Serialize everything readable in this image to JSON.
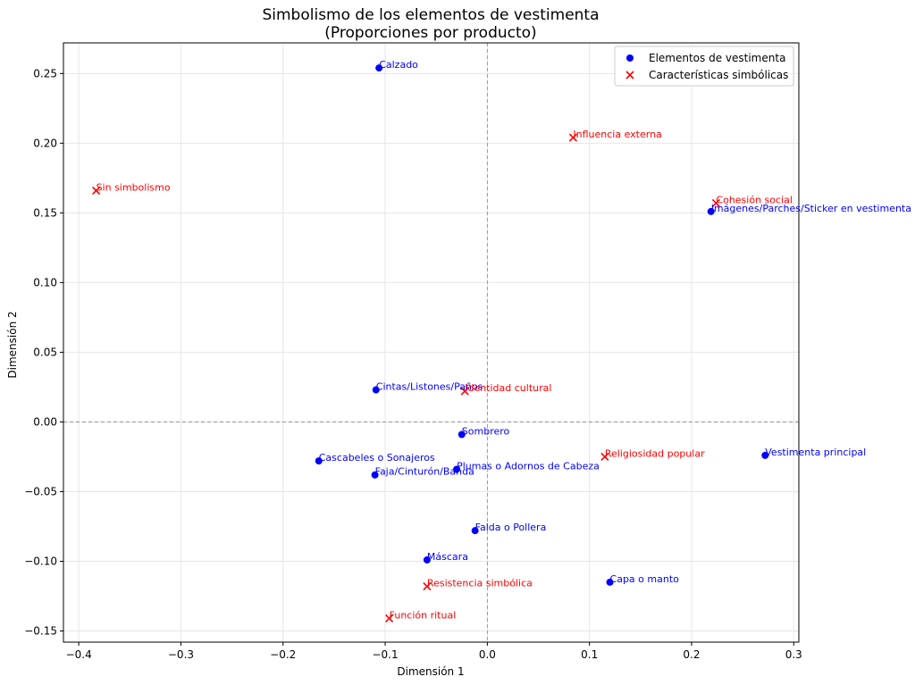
{
  "chart_data": {
    "type": "scatter",
    "title": "Simbolismo de los elementos de vestimenta",
    "subtitle": "(Proporciones por producto)",
    "xlabel": "Dimensión 1",
    "ylabel": "Dimensión 2",
    "xlim": [
      -0.415,
      0.305
    ],
    "ylim": [
      -0.158,
      0.272
    ],
    "xticks": [
      -0.4,
      -0.3,
      -0.2,
      -0.1,
      0.0,
      0.1,
      0.2,
      0.3
    ],
    "xtick_labels": [
      "−0.4",
      "−0.3",
      "−0.2",
      "−0.1",
      "0.0",
      "0.1",
      "0.2",
      "0.3"
    ],
    "yticks": [
      -0.15,
      -0.1,
      -0.05,
      0.0,
      0.05,
      0.1,
      0.15,
      0.2,
      0.25
    ],
    "ytick_labels": [
      "−0.15",
      "−0.10",
      "−0.05",
      "0.00",
      "0.05",
      "0.10",
      "0.15",
      "0.20",
      "0.25"
    ],
    "grid": true,
    "reference_lines": {
      "x": 0,
      "y": 0
    },
    "legend_position": "top-right",
    "series": [
      {
        "name": "Elementos de vestimenta",
        "marker": "circle",
        "color": "#0000ff",
        "points": [
          {
            "label": "Calzado",
            "x": -0.106,
            "y": 0.254
          },
          {
            "label": "Imágenes/Parches/Sticker en vestimenta",
            "x": 0.219,
            "y": 0.151
          },
          {
            "label": "Cintas/Listones/Paños",
            "x": -0.109,
            "y": 0.023
          },
          {
            "label": "Sombrero",
            "x": -0.025,
            "y": -0.009
          },
          {
            "label": "Cascabeles o Sonajeros",
            "x": -0.165,
            "y": -0.028
          },
          {
            "label": "Plumas o Adornos de Cabeza",
            "x": -0.03,
            "y": -0.034
          },
          {
            "label": "Faja/Cinturón/Banda",
            "x": -0.11,
            "y": -0.038
          },
          {
            "label": "Vestimenta principal",
            "x": 0.272,
            "y": -0.024
          },
          {
            "label": "Falda o Pollera",
            "x": -0.012,
            "y": -0.078
          },
          {
            "label": "Máscara",
            "x": -0.059,
            "y": -0.099
          },
          {
            "label": "Capa o manto",
            "x": 0.12,
            "y": -0.115
          }
        ]
      },
      {
        "name": "Características simbólicas",
        "marker": "x",
        "color": "#ff0000",
        "points": [
          {
            "label": "Sin simbolismo",
            "x": -0.383,
            "y": 0.166
          },
          {
            "label": "Influencia externa",
            "x": 0.084,
            "y": 0.204
          },
          {
            "label": "Cohesión social",
            "x": 0.224,
            "y": 0.157
          },
          {
            "label": "Identidad cultural",
            "x": -0.022,
            "y": 0.022
          },
          {
            "label": "Religiosidad popular",
            "x": 0.115,
            "y": -0.025
          },
          {
            "label": "Resistencia simbólica",
            "x": -0.059,
            "y": -0.118
          },
          {
            "label": "Función ritual",
            "x": -0.096,
            "y": -0.141
          }
        ]
      }
    ]
  }
}
